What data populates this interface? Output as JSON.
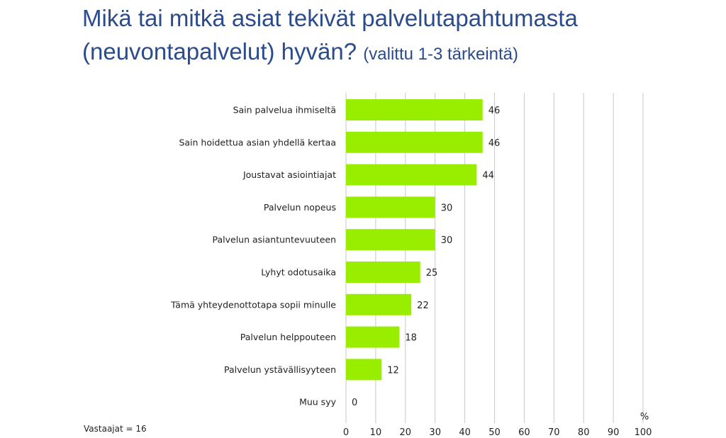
{
  "title": {
    "line1": "Mikä tai mitkä asiat tekivät palvelutapahtumasta",
    "line2": "(neuvontapalvelut) hyvän?",
    "subtitle": "(valittu 1-3 tärkeintä)"
  },
  "respondents_note": "Vastaajat = 16",
  "colors": {
    "title": "#2b4c8c",
    "bar": "#99ee00",
    "grid": "#c8c8c8",
    "text": "#222222"
  },
  "chart_data": {
    "type": "bar",
    "orientation": "horizontal",
    "categories": [
      "Sain palvelua ihmiseltä",
      "Sain hoidettua asian yhdellä kertaa",
      "Joustavat asiointiajat",
      "Palvelun nopeus",
      "Palvelun asiantuntevuuteen",
      "Lyhyt odotusaika",
      "Tämä yhteydenottotapa sopii minulle",
      "Palvelun helppouteen",
      "Palvelun ystävällisyyteen",
      "Muu syy"
    ],
    "values": [
      46,
      46,
      44,
      30,
      30,
      25,
      22,
      18,
      12,
      0
    ],
    "xlim": [
      0,
      100
    ],
    "xticks": [
      0,
      10,
      20,
      30,
      40,
      50,
      60,
      70,
      80,
      90,
      100
    ],
    "unit_label": "%",
    "grid": "vertical"
  }
}
